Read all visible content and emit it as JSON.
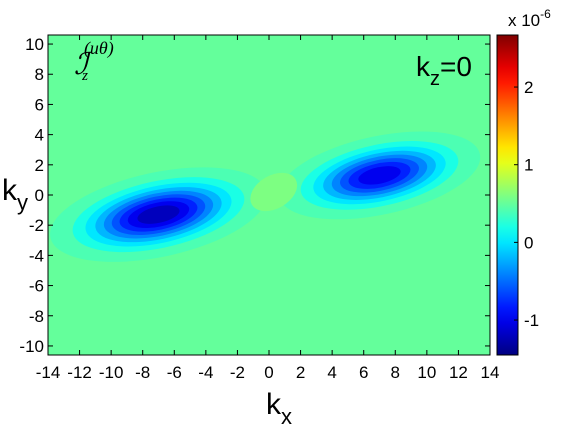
{
  "chart_data": {
    "type": "contour",
    "annotations": {
      "quantity": {
        "symbol": "ℐ",
        "subscript": "z",
        "superscript": "(uθ)"
      },
      "plane": {
        "base": "k",
        "subscript": "z",
        "rest": "=0"
      }
    },
    "x_label": {
      "base": "k",
      "subscript": "x"
    },
    "y_label": {
      "base": "k",
      "subscript": "y"
    },
    "xlim": [
      -14,
      14
    ],
    "xticks": [
      -14,
      -12,
      -10,
      -8,
      -6,
      -4,
      -2,
      0,
      2,
      4,
      6,
      8,
      10,
      12,
      14
    ],
    "ylim": [
      -10.6,
      10.6
    ],
    "yticks": [
      -10,
      -8,
      -6,
      -4,
      -2,
      0,
      2,
      4,
      6,
      8,
      10
    ],
    "background_value": 0.5,
    "level_step": 0.2,
    "blobs": [
      {
        "x": -7,
        "y": -1.3,
        "rx": 7,
        "ry": 2.8,
        "angle": 12,
        "peak": -1.4
      },
      {
        "x": 7,
        "y": 1.3,
        "rx": 6.5,
        "ry": 2.6,
        "angle": 12,
        "peak": -1.2
      },
      {
        "x": 0.3,
        "y": 0.2,
        "rx": 1.6,
        "ry": 1.1,
        "angle": 30,
        "peak": 0.7
      }
    ],
    "colorbar": {
      "colormap": "jet",
      "clim": [
        -1.45,
        2.67
      ],
      "ticks": [
        -1,
        0,
        1,
        2
      ],
      "multiplier": {
        "base": "x 10",
        "exponent": "-6"
      }
    }
  }
}
